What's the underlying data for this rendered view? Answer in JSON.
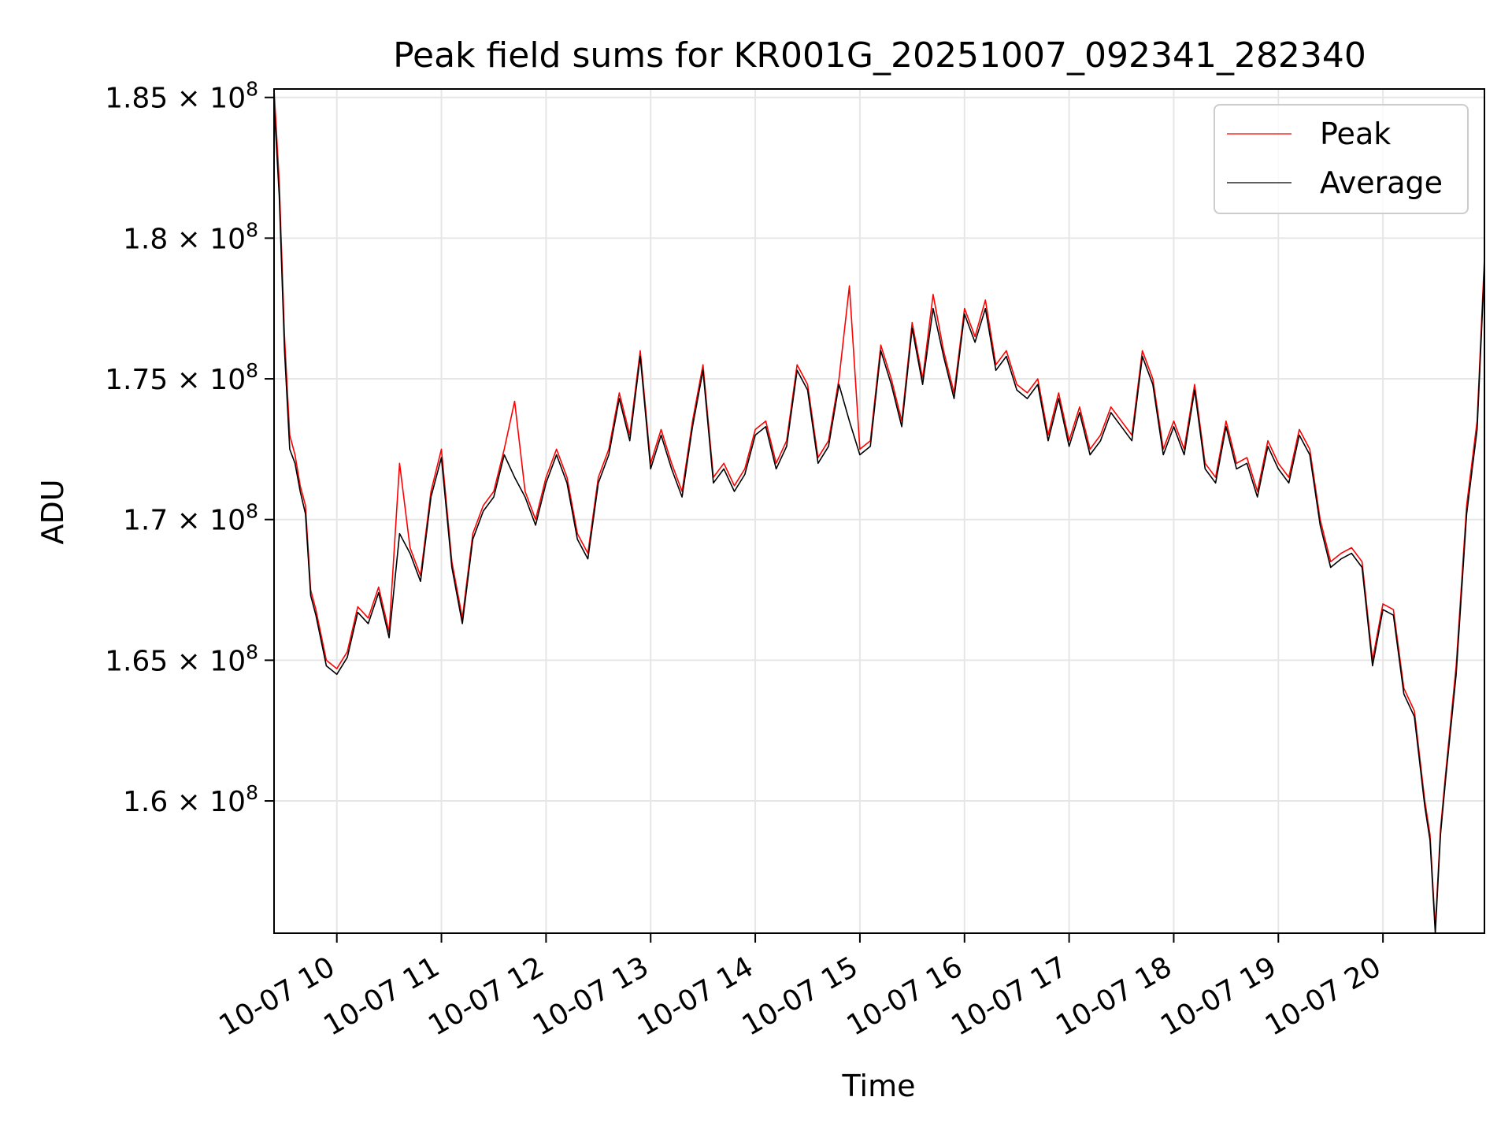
{
  "chart_data": {
    "type": "line",
    "title": "Peak field sums for KR001G_20251007_092341_282340",
    "xlabel": "Time",
    "ylabel": "ADU",
    "x_unit": "hours (10-07)",
    "xlim": [
      9.4,
      20.97
    ],
    "ylim": [
      155300000,
      185300000
    ],
    "grid": true,
    "legend_position": "upper right",
    "x_ticks": [
      {
        "value": 10,
        "label": "10-07 10"
      },
      {
        "value": 11,
        "label": "10-07 11"
      },
      {
        "value": 12,
        "label": "10-07 12"
      },
      {
        "value": 13,
        "label": "10-07 13"
      },
      {
        "value": 14,
        "label": "10-07 14"
      },
      {
        "value": 15,
        "label": "10-07 15"
      },
      {
        "value": 16,
        "label": "10-07 16"
      },
      {
        "value": 17,
        "label": "10-07 17"
      },
      {
        "value": 18,
        "label": "10-07 18"
      },
      {
        "value": 19,
        "label": "10-07 19"
      },
      {
        "value": 20,
        "label": "10-07 20"
      }
    ],
    "y_ticks": [
      {
        "value": 160000000,
        "mantissa": "1.6"
      },
      {
        "value": 165000000,
        "mantissa": "1.65"
      },
      {
        "value": 170000000,
        "mantissa": "1.7"
      },
      {
        "value": 175000000,
        "mantissa": "1.75"
      },
      {
        "value": 180000000,
        "mantissa": "1.8"
      },
      {
        "value": 185000000,
        "mantissa": "1.85"
      }
    ],
    "y_tick_base": "10",
    "y_tick_exponent": "8",
    "y_tick_times": "×",
    "series": [
      {
        "name": "Peak",
        "color": "#ff0000",
        "x": [
          9.4,
          9.45,
          9.5,
          9.55,
          9.6,
          9.65,
          9.7,
          9.75,
          9.8,
          9.9,
          10.0,
          10.1,
          10.2,
          10.3,
          10.4,
          10.5,
          10.6,
          10.7,
          10.8,
          10.9,
          11.0,
          11.1,
          11.2,
          11.3,
          11.4,
          11.5,
          11.6,
          11.7,
          11.8,
          11.9,
          12.0,
          12.1,
          12.2,
          12.3,
          12.4,
          12.5,
          12.6,
          12.7,
          12.8,
          12.9,
          13.0,
          13.1,
          13.2,
          13.3,
          13.4,
          13.5,
          13.6,
          13.7,
          13.8,
          13.9,
          14.0,
          14.1,
          14.2,
          14.3,
          14.4,
          14.5,
          14.6,
          14.7,
          14.8,
          14.9,
          15.0,
          15.1,
          15.2,
          15.3,
          15.4,
          15.5,
          15.6,
          15.7,
          15.8,
          15.9,
          16.0,
          16.1,
          16.2,
          16.3,
          16.4,
          16.5,
          16.6,
          16.7,
          16.8,
          16.9,
          17.0,
          17.1,
          17.2,
          17.3,
          17.4,
          17.5,
          17.6,
          17.7,
          17.8,
          17.9,
          18.0,
          18.1,
          18.2,
          18.3,
          18.4,
          18.5,
          18.6,
          18.7,
          18.8,
          18.9,
          19.0,
          19.1,
          19.2,
          19.3,
          19.4,
          19.5,
          19.6,
          19.7,
          19.8,
          19.9,
          20.0,
          20.1,
          20.2,
          20.3,
          20.4,
          20.45,
          20.5,
          20.55,
          20.6,
          20.7,
          20.8,
          20.9,
          20.97
        ],
        "values": [
          185300000,
          182000000,
          176500000,
          173000000,
          172300000,
          171200000,
          170500000,
          167500000,
          166800000,
          165000000,
          164700000,
          165300000,
          166900000,
          166500000,
          167600000,
          166000000,
          172000000,
          169000000,
          168000000,
          171000000,
          172500000,
          168500000,
          166500000,
          169500000,
          170500000,
          171000000,
          172500000,
          174200000,
          171000000,
          170000000,
          171500000,
          172500000,
          171500000,
          169500000,
          168800000,
          171500000,
          172500000,
          174500000,
          173000000,
          176000000,
          172000000,
          173200000,
          172000000,
          171000000,
          173500000,
          175500000,
          171500000,
          172000000,
          171200000,
          171800000,
          173200000,
          173500000,
          172000000,
          172800000,
          175500000,
          174800000,
          172200000,
          172800000,
          175000000,
          178300000,
          172500000,
          172800000,
          176200000,
          175000000,
          173500000,
          177000000,
          175000000,
          178000000,
          176000000,
          174500000,
          177500000,
          176500000,
          177800000,
          175500000,
          176000000,
          174800000,
          174500000,
          175000000,
          173000000,
          174500000,
          172800000,
          174000000,
          172500000,
          173000000,
          174000000,
          173500000,
          173000000,
          176000000,
          175000000,
          172500000,
          173500000,
          172500000,
          174800000,
          172000000,
          171500000,
          173500000,
          172000000,
          172200000,
          171000000,
          172800000,
          172000000,
          171500000,
          173200000,
          172500000,
          170000000,
          168500000,
          168800000,
          169000000,
          168500000,
          165000000,
          167000000,
          166800000,
          164000000,
          163200000,
          160000000,
          158800000,
          155500000,
          159000000,
          161000000,
          164800000,
          170500000,
          173500000,
          179300000
        ]
      },
      {
        "name": "Average",
        "color": "#000000",
        "x": [
          9.4,
          9.45,
          9.5,
          9.55,
          9.6,
          9.65,
          9.7,
          9.75,
          9.8,
          9.9,
          10.0,
          10.1,
          10.2,
          10.3,
          10.4,
          10.5,
          10.6,
          10.7,
          10.8,
          10.9,
          11.0,
          11.1,
          11.2,
          11.3,
          11.4,
          11.5,
          11.6,
          11.7,
          11.8,
          11.9,
          12.0,
          12.1,
          12.2,
          12.3,
          12.4,
          12.5,
          12.6,
          12.7,
          12.8,
          12.9,
          13.0,
          13.1,
          13.2,
          13.3,
          13.4,
          13.5,
          13.6,
          13.7,
          13.8,
          13.9,
          14.0,
          14.1,
          14.2,
          14.3,
          14.4,
          14.5,
          14.6,
          14.7,
          14.8,
          14.9,
          15.0,
          15.1,
          15.2,
          15.3,
          15.4,
          15.5,
          15.6,
          15.7,
          15.8,
          15.9,
          16.0,
          16.1,
          16.2,
          16.3,
          16.4,
          16.5,
          16.6,
          16.7,
          16.8,
          16.9,
          17.0,
          17.1,
          17.2,
          17.3,
          17.4,
          17.5,
          17.6,
          17.7,
          17.8,
          17.9,
          18.0,
          18.1,
          18.2,
          18.3,
          18.4,
          18.5,
          18.6,
          18.7,
          18.8,
          18.9,
          19.0,
          19.1,
          19.2,
          19.3,
          19.4,
          19.5,
          19.6,
          19.7,
          19.8,
          19.9,
          20.0,
          20.1,
          20.2,
          20.3,
          20.4,
          20.45,
          20.5,
          20.55,
          20.6,
          20.7,
          20.8,
          20.9,
          20.97
        ],
        "values": [
          184800000,
          181500000,
          176000000,
          172500000,
          172000000,
          171000000,
          170200000,
          167300000,
          166600000,
          164800000,
          164500000,
          165100000,
          166700000,
          166300000,
          167400000,
          165800000,
          169500000,
          168800000,
          167800000,
          170800000,
          172200000,
          168300000,
          166300000,
          169300000,
          170300000,
          170800000,
          172300000,
          171500000,
          170800000,
          169800000,
          171300000,
          172300000,
          171300000,
          169300000,
          168600000,
          171300000,
          172300000,
          174300000,
          172800000,
          175800000,
          171800000,
          173000000,
          171800000,
          170800000,
          173300000,
          175300000,
          171300000,
          171800000,
          171000000,
          171600000,
          173000000,
          173300000,
          171800000,
          172600000,
          175300000,
          174600000,
          172000000,
          172600000,
          174800000,
          173500000,
          172300000,
          172600000,
          176000000,
          174800000,
          173300000,
          176800000,
          174800000,
          177500000,
          175800000,
          174300000,
          177300000,
          176300000,
          177500000,
          175300000,
          175800000,
          174600000,
          174300000,
          174800000,
          172800000,
          174300000,
          172600000,
          173800000,
          172300000,
          172800000,
          173800000,
          173300000,
          172800000,
          175800000,
          174800000,
          172300000,
          173300000,
          172300000,
          174600000,
          171800000,
          171300000,
          173300000,
          171800000,
          172000000,
          170800000,
          172600000,
          171800000,
          171300000,
          173000000,
          172300000,
          169800000,
          168300000,
          168600000,
          168800000,
          168300000,
          164800000,
          166800000,
          166600000,
          163800000,
          163000000,
          159800000,
          158600000,
          155300000,
          158800000,
          160800000,
          164500000,
          170200000,
          173200000,
          179000000
        ]
      }
    ]
  }
}
